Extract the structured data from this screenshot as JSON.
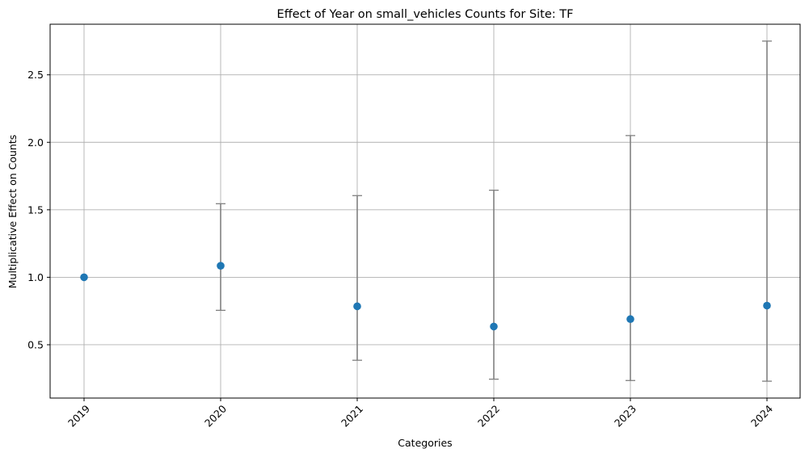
{
  "chart_data": {
    "type": "scatter",
    "title": "Effect of Year on small_vehicles Counts for Site: TF",
    "xlabel": "Categories",
    "ylabel": "Multiplicative Effect on Counts",
    "categories": [
      "2019",
      "2020",
      "2021",
      "2022",
      "2023",
      "2024"
    ],
    "values": [
      1.0,
      1.085,
      0.785,
      0.635,
      0.69,
      0.79
    ],
    "error_lower": [
      1.0,
      0.755,
      0.385,
      0.245,
      0.235,
      0.23
    ],
    "error_upper": [
      1.0,
      1.545,
      1.605,
      1.645,
      2.05,
      2.75
    ],
    "yticks": [
      0.5,
      1.0,
      1.5,
      2.0,
      2.5
    ],
    "ytick_labels": [
      "0.5",
      "1.0",
      "1.5",
      "2.0",
      "2.5"
    ],
    "ylim": [
      0.105,
      2.875
    ],
    "xtick_rotation": 45,
    "grid": true,
    "colors": {
      "points": "#1f77b4",
      "error_bars": "#808080",
      "grid": "#b0b0b0"
    }
  }
}
